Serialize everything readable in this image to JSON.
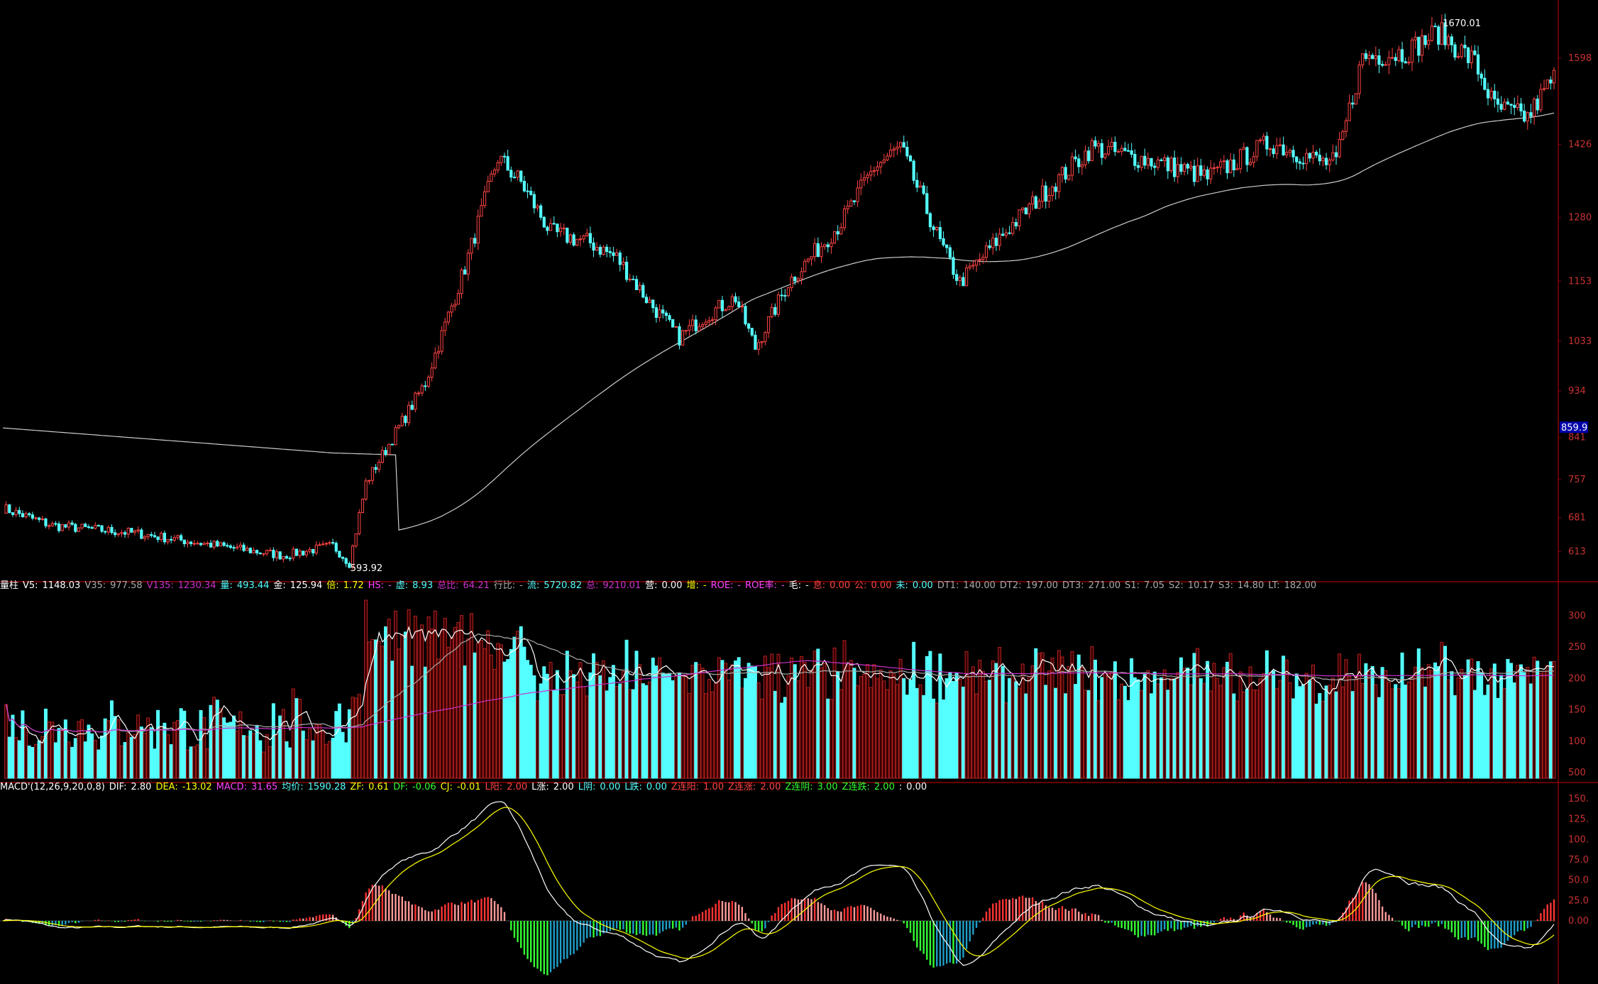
{
  "colors": {
    "background": "#000000",
    "up": "#ff4444",
    "down": "#54ffff",
    "grid": "#8b0000",
    "axis_text": "#c83232",
    "ma_line": "#cccccc",
    "vol_ma_magenta": "#cc33cc",
    "dif": "#ffffff",
    "dea": "#ffff00"
  },
  "chart_data": [
    {
      "type": "candlestick",
      "panel": "price",
      "yticks": [
        1598,
        1426,
        1280,
        1153,
        1033,
        934,
        841,
        757,
        681,
        613
      ],
      "last_price_badge": "859.9",
      "annotations": {
        "high": "1670.01",
        "low": "593.92"
      },
      "long_ma": "gray moving average line",
      "candles_count": 280
    },
    {
      "type": "bar",
      "panel": "volume",
      "yticks": [
        "300",
        "250",
        "200",
        "150",
        "100",
        "500"
      ]
    },
    {
      "type": "bar",
      "panel": "macd",
      "yticks": [
        "150.",
        "125.",
        "100.",
        "75.0",
        "50.0",
        "25.0",
        "0.00"
      ]
    }
  ],
  "volume_info": [
    {
      "text": "量柱",
      "color": "#ffffff"
    },
    {
      "text": "V5:",
      "color": "#ffffff"
    },
    {
      "text": "1148.03",
      "color": "#ffffff"
    },
    {
      "text": "V35:",
      "color": "#aaaaaa"
    },
    {
      "text": "977.58",
      "color": "#aaaaaa"
    },
    {
      "text": "V135:",
      "color": "#cc33cc"
    },
    {
      "text": "1230.34",
      "color": "#cc33cc"
    },
    {
      "text": "量:",
      "color": "#54ffff"
    },
    {
      "text": "493.44",
      "color": "#54ffff"
    },
    {
      "text": "金:",
      "color": "#ffffff"
    },
    {
      "text": "125.94",
      "color": "#ffffff"
    },
    {
      "text": "倍:",
      "color": "#ffff00"
    },
    {
      "text": "1.72",
      "color": "#ffff00"
    },
    {
      "text": "HS:",
      "color": "#ff44ff"
    },
    {
      "text": "-",
      "color": "#ff44ff"
    },
    {
      "text": "虚:",
      "color": "#54ffff"
    },
    {
      "text": "8.93",
      "color": "#54ffff"
    },
    {
      "text": "总比:",
      "color": "#cc33cc"
    },
    {
      "text": "64.21",
      "color": "#cc33cc"
    },
    {
      "text": "行比:",
      "color": "#aaaaaa"
    },
    {
      "text": "-",
      "color": "#aaaaaa"
    },
    {
      "text": "流:",
      "color": "#54ffff"
    },
    {
      "text": "5720.82",
      "color": "#54ffff"
    },
    {
      "text": "总:",
      "color": "#cc33cc"
    },
    {
      "text": "9210.01",
      "color": "#cc33cc"
    },
    {
      "text": "营:",
      "color": "#ffffff"
    },
    {
      "text": "0.00",
      "color": "#ffffff"
    },
    {
      "text": "增:",
      "color": "#ffff00"
    },
    {
      "text": "-",
      "color": "#ffff00"
    },
    {
      "text": "ROE:",
      "color": "#ff44ff"
    },
    {
      "text": "-",
      "color": "#ff44ff"
    },
    {
      "text": "ROE率:",
      "color": "#ff44ff"
    },
    {
      "text": "-",
      "color": "#ff44ff"
    },
    {
      "text": "毛:",
      "color": "#ffffff"
    },
    {
      "text": "-",
      "color": "#ffffff"
    },
    {
      "text": "息:",
      "color": "#ff4444"
    },
    {
      "text": "0.00",
      "color": "#ff4444"
    },
    {
      "text": "公:",
      "color": "#ff4444"
    },
    {
      "text": "0.00",
      "color": "#ff4444"
    },
    {
      "text": "未:",
      "color": "#54ffff"
    },
    {
      "text": "0.00",
      "color": "#54ffff"
    },
    {
      "text": "DT1:",
      "color": "#aaaaaa"
    },
    {
      "text": "140.00",
      "color": "#aaaaaa"
    },
    {
      "text": "DT2:",
      "color": "#aaaaaa"
    },
    {
      "text": "197.00",
      "color": "#aaaaaa"
    },
    {
      "text": "DT3:",
      "color": "#aaaaaa"
    },
    {
      "text": "271.00",
      "color": "#aaaaaa"
    },
    {
      "text": "S1:",
      "color": "#aaaaaa"
    },
    {
      "text": "7.05",
      "color": "#aaaaaa"
    },
    {
      "text": "S2:",
      "color": "#aaaaaa"
    },
    {
      "text": "10.17",
      "color": "#aaaaaa"
    },
    {
      "text": "S3:",
      "color": "#aaaaaa"
    },
    {
      "text": "14.80",
      "color": "#aaaaaa"
    },
    {
      "text": "LT:",
      "color": "#aaaaaa"
    },
    {
      "text": "182.00",
      "color": "#aaaaaa"
    }
  ],
  "macd_info": [
    {
      "text": "MACD'(12,26,9,20,0,8)",
      "color": "#ffffff"
    },
    {
      "text": "DIF:",
      "color": "#ffffff"
    },
    {
      "text": "2.80",
      "color": "#ffffff"
    },
    {
      "text": "DEA:",
      "color": "#ffff00"
    },
    {
      "text": "-13.02",
      "color": "#ffff00"
    },
    {
      "text": "MACD:",
      "color": "#ff44ff"
    },
    {
      "text": "31.65",
      "color": "#ff44ff"
    },
    {
      "text": "均价:",
      "color": "#54ffff"
    },
    {
      "text": "1590.28",
      "color": "#54ffff"
    },
    {
      "text": "ZF:",
      "color": "#ffff00"
    },
    {
      "text": "0.61",
      "color": "#ffff00"
    },
    {
      "text": "DF:",
      "color": "#33ff33"
    },
    {
      "text": "-0.06",
      "color": "#33ff33"
    },
    {
      "text": "CJ:",
      "color": "#ffff00"
    },
    {
      "text": "-0.01",
      "color": "#ffff00"
    },
    {
      "text": "L阳:",
      "color": "#ff4444"
    },
    {
      "text": "2.00",
      "color": "#ff4444"
    },
    {
      "text": "L涨:",
      "color": "#ffffff"
    },
    {
      "text": "2.00",
      "color": "#ffffff"
    },
    {
      "text": "L阴:",
      "color": "#54ffff"
    },
    {
      "text": "0.00",
      "color": "#54ffff"
    },
    {
      "text": "L跌:",
      "color": "#54ffff"
    },
    {
      "text": "0.00",
      "color": "#54ffff"
    },
    {
      "text": "Z连阳:",
      "color": "#ff4444"
    },
    {
      "text": "1.00",
      "color": "#ff4444"
    },
    {
      "text": "Z连涨:",
      "color": "#ff4444"
    },
    {
      "text": "2.00",
      "color": "#ff4444"
    },
    {
      "text": "Z连阴:",
      "color": "#33ff33"
    },
    {
      "text": "3.00",
      "color": "#33ff33"
    },
    {
      "text": "Z连跌:",
      "color": "#33ff33"
    },
    {
      "text": "2.00",
      "color": "#33ff33"
    },
    {
      "text": ":",
      "color": "#ffffff"
    },
    {
      "text": "0.00",
      "color": "#ffffff"
    }
  ]
}
